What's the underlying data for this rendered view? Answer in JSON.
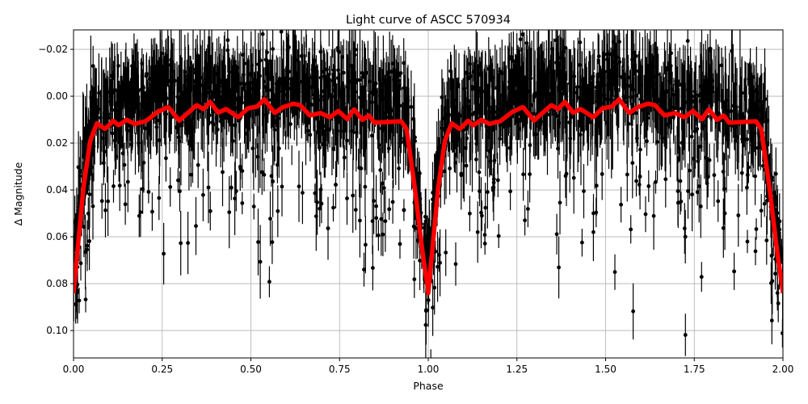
{
  "chart_data": {
    "type": "scatter",
    "title": "Light curve of ASCC 570934",
    "xlabel": "Phase",
    "ylabel": "Δ Magnitude",
    "xlim": [
      0,
      2
    ],
    "ylim": [
      0.1117,
      -0.0283
    ],
    "y_inverted": true,
    "grid": true,
    "x_ticks": [
      "0.00",
      "0.25",
      "0.50",
      "0.75",
      "1.00",
      "1.25",
      "1.50",
      "1.75",
      "2.00"
    ],
    "y_ticks": [
      "−0.02",
      "0.00",
      "0.02",
      "0.04",
      "0.06",
      "0.08",
      "0.10"
    ],
    "colors": {
      "points": "#000000",
      "model": "#ff0000",
      "grid": "#b0b0b0"
    },
    "series": [
      {
        "kind": "observations with error bars",
        "color": "#000000",
        "note": "dense cloud of several thousand points, scattered around the model with a tail to fainter magnitudes"
      },
      {
        "kind": "model curve",
        "color": "#ff0000",
        "x": [
          0.0,
          0.028,
          0.047,
          0.066,
          0.089,
          0.112,
          0.127,
          0.15,
          0.172,
          0.203,
          0.237,
          0.267,
          0.298,
          0.347,
          0.366,
          0.385,
          0.408,
          0.43,
          0.465,
          0.491,
          0.518,
          0.538,
          0.567,
          0.59,
          0.62,
          0.639,
          0.666,
          0.696,
          0.723,
          0.746,
          0.772,
          0.791,
          0.814,
          0.833,
          0.848,
          0.924,
          0.939,
          0.962,
          0.985,
          1.0
        ],
        "y": [
          0.084,
          0.039,
          0.019,
          0.0116,
          0.014,
          0.0105,
          0.0124,
          0.0101,
          0.0118,
          0.0107,
          0.0067,
          0.0046,
          0.0104,
          0.0038,
          0.0055,
          0.0024,
          0.007,
          0.0055,
          0.009,
          0.0052,
          0.0044,
          0.0013,
          0.0072,
          0.0047,
          0.0032,
          0.0038,
          0.0082,
          0.0072,
          0.009,
          0.0063,
          0.0098,
          0.0055,
          0.0101,
          0.0082,
          0.0113,
          0.0107,
          0.0141,
          0.039,
          0.068,
          0.083
        ],
        "repeats_with_period": 1
      }
    ]
  }
}
